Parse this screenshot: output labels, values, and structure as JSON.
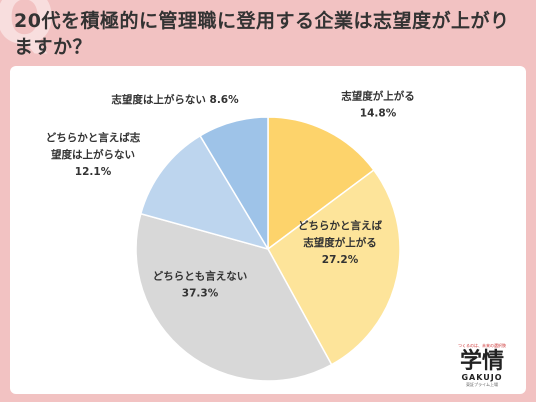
{
  "title": "20代を積極的に管理職に登用する企業は志望度が上がりますか？",
  "logo": {
    "tagline": "つくるのは、未来の選択肢",
    "main": "学情",
    "english": "GAKUJO",
    "sub": "東証プライム上場"
  },
  "chart_data": {
    "type": "pie",
    "start_angle_deg": 0,
    "direction": "clockwise",
    "slices": [
      {
        "label_lines": [
          "志望度が上がる"
        ],
        "value": 14.8,
        "value_label": "14.8%",
        "color": "#fdd36b"
      },
      {
        "label_lines": [
          "どちらかと言えば",
          "志望度が上がる"
        ],
        "value": 27.2,
        "value_label": "27.2%",
        "color": "#fde49a"
      },
      {
        "label_lines": [
          "どちらとも言えない"
        ],
        "value": 37.3,
        "value_label": "37.3%",
        "color": "#d8d8d8"
      },
      {
        "label_lines": [
          "どちらかと言えば志",
          "望度は上がらない"
        ],
        "value": 12.1,
        "value_label": "12.1%",
        "color": "#bdd5ee"
      },
      {
        "label_lines": [
          "志望度は上がらない 8.6%"
        ],
        "value": 8.6,
        "value_label": "",
        "color": "#9ec3e8"
      }
    ]
  }
}
